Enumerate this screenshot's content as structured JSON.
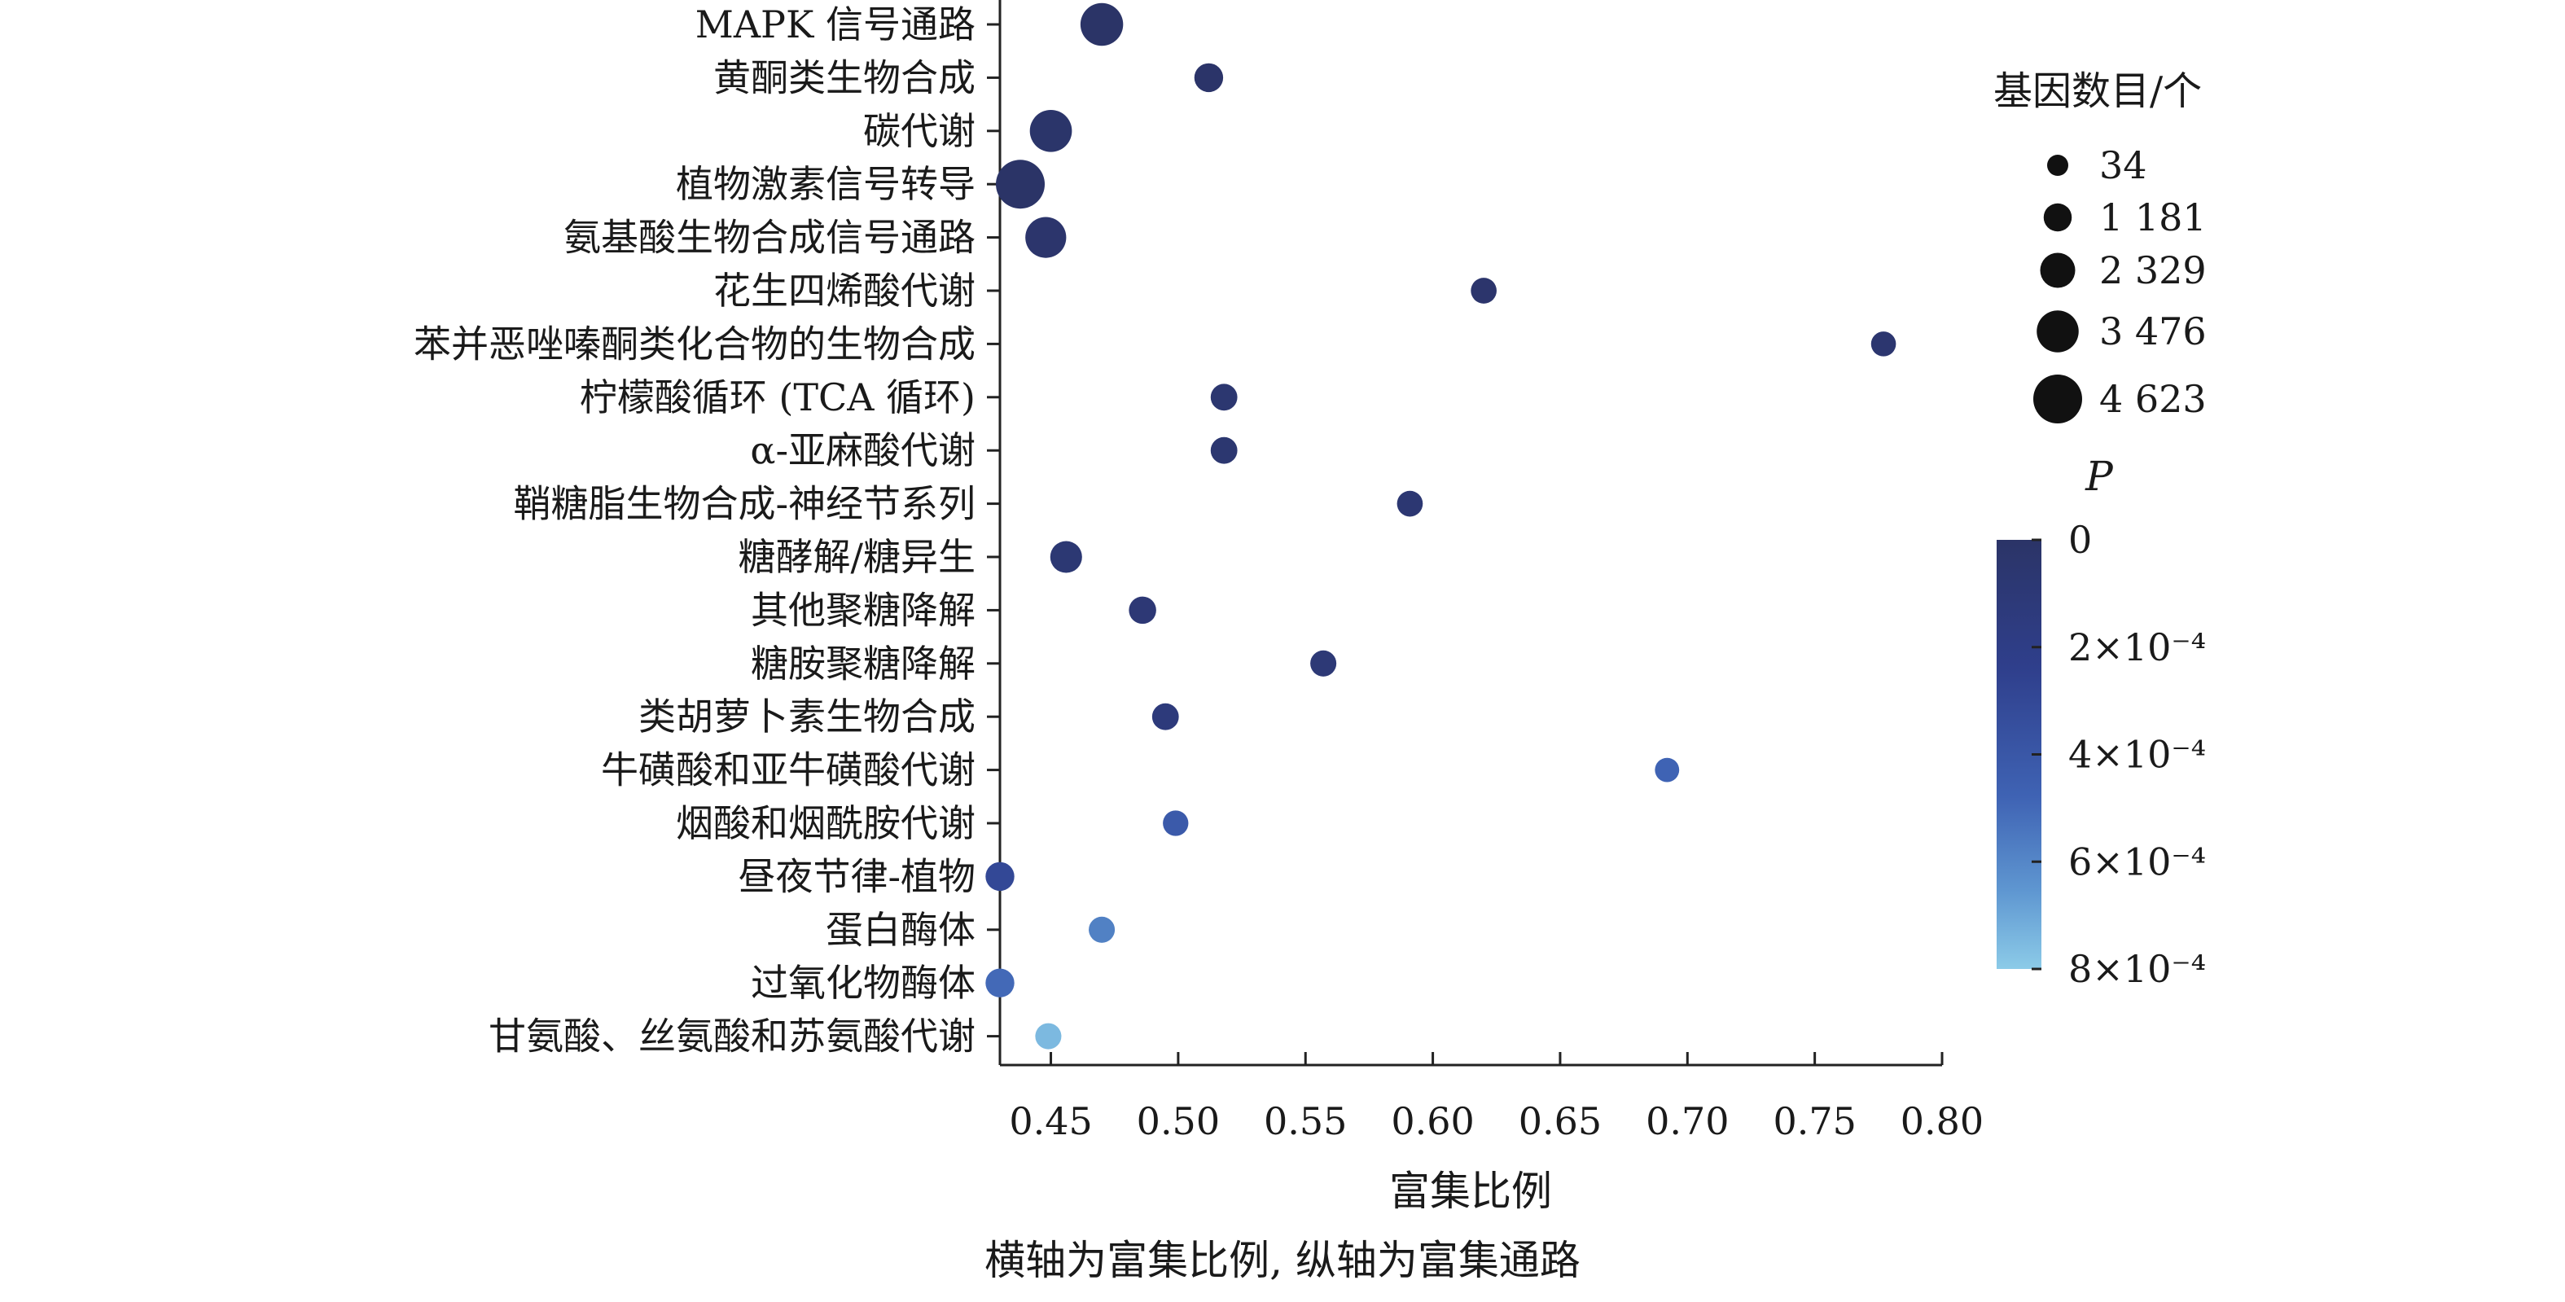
{
  "chart_data": {
    "type": "scatter",
    "title": "",
    "xlabel": "富集比例",
    "ylabel": "",
    "caption": "横轴为富集比例, 纵轴为富集通路",
    "xlim": [
      0.43,
      0.8
    ],
    "xticks": [
      "0.45",
      "0.50",
      "0.55",
      "0.60",
      "0.65",
      "0.70",
      "0.75",
      "0.80"
    ],
    "xtick_values": [
      0.45,
      0.5,
      0.55,
      0.6,
      0.65,
      0.7,
      0.75,
      0.8
    ],
    "size_legend": {
      "title": "基因数目/个",
      "values": [
        34,
        1181,
        2329,
        3476,
        4623
      ],
      "labels": [
        "34",
        "1 181",
        "2 329",
        "3 476",
        "4 623"
      ]
    },
    "color_legend": {
      "title": "P",
      "labels": [
        "0",
        "2×10⁻⁴",
        "4×10⁻⁴",
        "6×10⁻⁴",
        "8×10⁻⁴"
      ],
      "values": [
        0,
        0.0002,
        0.0004,
        0.0006,
        0.0008
      ],
      "color_high": "#2b3467",
      "color_low": "#8ccbe8"
    },
    "points": [
      {
        "pathway": "MAPK 信号通路",
        "ratio": 0.47,
        "genes": 3600,
        "p": 0.0
      },
      {
        "pathway": "黄酮类生物合成",
        "ratio": 0.512,
        "genes": 1300,
        "p": 1e-05
      },
      {
        "pathway": "碳代谢",
        "ratio": 0.45,
        "genes": 3500,
        "p": 2e-05
      },
      {
        "pathway": "植物激素信号转导",
        "ratio": 0.438,
        "genes": 4623,
        "p": 0.0
      },
      {
        "pathway": "氨基酸生物合成信号通路",
        "ratio": 0.448,
        "genes": 3300,
        "p": 3e-05
      },
      {
        "pathway": "花生四烯酸代谢",
        "ratio": 0.62,
        "genes": 800,
        "p": 3e-05
      },
      {
        "pathway": "苯并恶唑嗪酮类化合物的生物合成",
        "ratio": 0.777,
        "genes": 650,
        "p": 5e-05
      },
      {
        "pathway": "柠檬酸循环 (TCA 循环)",
        "ratio": 0.518,
        "genes": 950,
        "p": 6e-05
      },
      {
        "pathway": "α-亚麻酸代谢",
        "ratio": 0.518,
        "genes": 950,
        "p": 6e-05
      },
      {
        "pathway": "鞘糖脂生物合成-神经节系列",
        "ratio": 0.591,
        "genes": 800,
        "p": 7e-05
      },
      {
        "pathway": "糖酵解/糖异生",
        "ratio": 0.456,
        "genes": 1800,
        "p": 8e-05
      },
      {
        "pathway": "其他聚糖降解",
        "ratio": 0.486,
        "genes": 1050,
        "p": 9e-05
      },
      {
        "pathway": "糖胺聚糖降解",
        "ratio": 0.557,
        "genes": 850,
        "p": 0.0001
      },
      {
        "pathway": "类胡萝卜素生物合成",
        "ratio": 0.495,
        "genes": 950,
        "p": 0.00013
      },
      {
        "pathway": "牛磺酸和亚牛磺酸代谢",
        "ratio": 0.692,
        "genes": 550,
        "p": 0.00048
      },
      {
        "pathway": "烟酸和烟酰胺代谢",
        "ratio": 0.499,
        "genes": 750,
        "p": 0.00042
      },
      {
        "pathway": "昼夜节律-植物",
        "ratio": 0.43,
        "genes": 1300,
        "p": 0.0003
      },
      {
        "pathway": "蛋白酶体",
        "ratio": 0.47,
        "genes": 850,
        "p": 0.00058
      },
      {
        "pathway": "过氧化物酶体",
        "ratio": 0.43,
        "genes": 1300,
        "p": 0.0005
      },
      {
        "pathway": "甘氨酸、丝氨酸和苏氨酸代谢",
        "ratio": 0.449,
        "genes": 850,
        "p": 0.00075
      }
    ]
  }
}
